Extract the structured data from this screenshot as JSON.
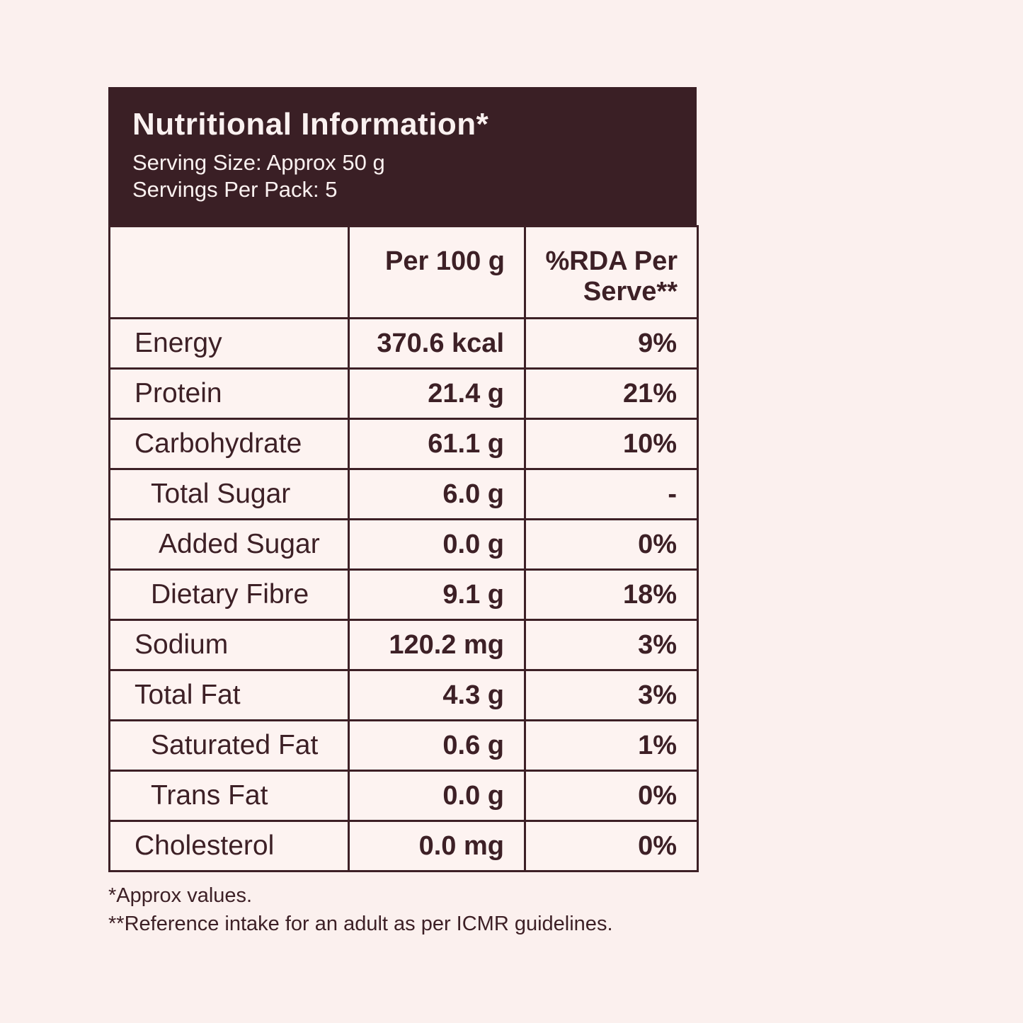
{
  "colors": {
    "page_background": "#fbf0ee",
    "header_background": "#3a1f25",
    "header_text": "#faf1f0",
    "cell_background": "#fdf3f1",
    "accent_dark_brown": "#3d2026"
  },
  "header": {
    "title": "Nutritional Information*",
    "serving_size": "Serving Size: Approx 50 g",
    "servings_per_pack": "Servings Per Pack: 5"
  },
  "table": {
    "columns": [
      "",
      "Per 100 g",
      "%RDA Per Serve**"
    ],
    "rows": [
      {
        "label": "Energy",
        "value": "370.6 kcal",
        "rda": "9%",
        "indent": 0
      },
      {
        "label": "Protein",
        "value": "21.4 g",
        "rda": "21%",
        "indent": 0
      },
      {
        "label": "Carbohydrate",
        "value": "61.1 g",
        "rda": "10%",
        "indent": 0
      },
      {
        "label": "Total Sugar",
        "value": "6.0 g",
        "rda": "-",
        "indent": 1
      },
      {
        "label": "Added Sugar",
        "value": "0.0 g",
        "rda": "0%",
        "indent": 2
      },
      {
        "label": "Dietary Fibre",
        "value": "9.1 g",
        "rda": "18%",
        "indent": 1
      },
      {
        "label": "Sodium",
        "value": "120.2 mg",
        "rda": "3%",
        "indent": 0
      },
      {
        "label": "Total Fat",
        "value": "4.3 g",
        "rda": "3%",
        "indent": 0
      },
      {
        "label": "Saturated Fat",
        "value": "0.6 g",
        "rda": "1%",
        "indent": 1
      },
      {
        "label": "Trans Fat",
        "value": "0.0 g",
        "rda": "0%",
        "indent": 1
      },
      {
        "label": "Cholesterol",
        "value": "0.0 mg",
        "rda": "0%",
        "indent": 0
      }
    ]
  },
  "footnotes": [
    "*Approx values.",
    "**Reference intake for an adult as per ICMR guidelines."
  ]
}
